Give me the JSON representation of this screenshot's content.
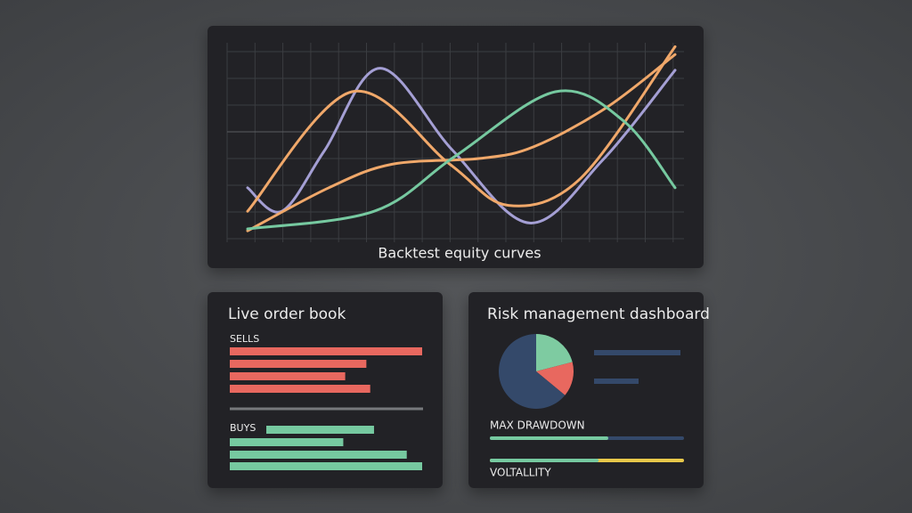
{
  "equity_chart": {
    "type": "line",
    "caption": "Backtest equity curves",
    "xlim": [
      0,
      10
    ],
    "ylim": [
      0,
      100
    ],
    "series": [
      {
        "color": "#a49fd4",
        "x": [
          0,
          0.8,
          1.8,
          3.1,
          4.8,
          6.6,
          8.3,
          10
        ],
        "values": [
          26,
          14,
          45,
          87,
          45,
          8,
          40,
          86
        ]
      },
      {
        "color": "#f0a86a",
        "x": [
          0,
          2.44,
          4.73,
          6.1,
          7.8,
          10
        ],
        "values": [
          14,
          75,
          38,
          17,
          31,
          98
        ]
      },
      {
        "color": "#f0a86a",
        "x": [
          0,
          1.9,
          3.38,
          5.46,
          6.7,
          8.4,
          10
        ],
        "values": [
          4,
          26,
          38,
          41,
          47,
          67,
          94
        ]
      },
      {
        "color": "#76c9a0",
        "x": [
          0,
          2.96,
          4.85,
          7.2,
          8.8,
          10
        ],
        "values": [
          5,
          14,
          42,
          75,
          60,
          26
        ]
      }
    ]
  },
  "order_book": {
    "title": "Live order book",
    "sells": {
      "label": "SELLS",
      "color": "#e8685f",
      "values": [
        100,
        71,
        60,
        73
      ]
    },
    "buys": {
      "label": "BUYS",
      "color": "#76c9a0",
      "values": [
        56,
        59,
        92,
        100
      ]
    }
  },
  "risk": {
    "title": "Risk management dashboard",
    "pie": {
      "values": [
        21,
        15,
        64
      ],
      "colors": [
        "#7ecba1",
        "#e8685f",
        "#34496a"
      ]
    },
    "max_drawdown": {
      "label": "MAX DRAWDOWN",
      "value": 61,
      "color": "#76c9a0",
      "track": "#34496a"
    },
    "volatility": {
      "label": "VOLTALLITY",
      "value": 56,
      "color": "#76c9a0",
      "track": "#e8c84a"
    }
  }
}
